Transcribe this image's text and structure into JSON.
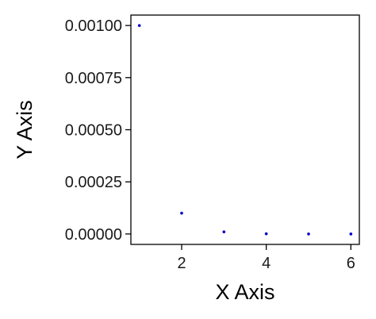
{
  "chart_data": {
    "type": "scatter",
    "title": "",
    "xlabel": "X Axis",
    "ylabel": "Y Axis",
    "xlim": [
      0.8,
      6.2
    ],
    "ylim": [
      -5e-05,
      0.00105
    ],
    "x_ticks": [
      2,
      4,
      6
    ],
    "x_tick_labels": [
      "2",
      "4",
      "6"
    ],
    "y_ticks": [
      0,
      0.00025,
      0.0005,
      0.00075,
      0.001
    ],
    "y_tick_labels": [
      "0.00000",
      "0.00025",
      "0.00050",
      "0.00075",
      "0.00100"
    ],
    "grid": false,
    "point_color": "#0000cc",
    "series": [
      {
        "x": [
          1,
          2,
          3,
          4,
          5,
          6
        ],
        "y": [
          0.001,
          0.0001,
          1e-05,
          1e-06,
          1e-07,
          1e-08
        ]
      }
    ]
  }
}
